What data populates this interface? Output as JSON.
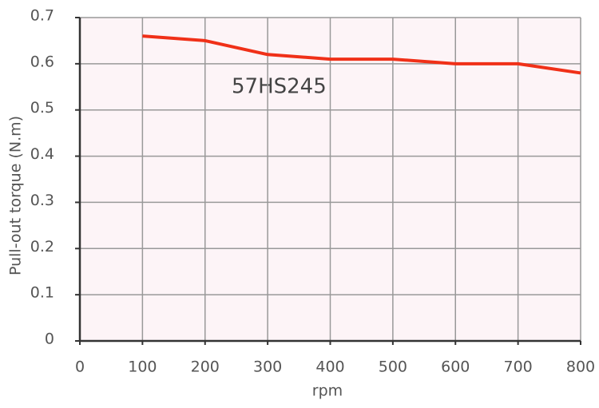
{
  "chart_data": {
    "type": "line",
    "annotation": "57HS245",
    "xlabel": "rpm",
    "ylabel": "Pull-out torque (N.m)",
    "x": [
      100,
      200,
      300,
      400,
      500,
      600,
      700,
      800
    ],
    "series": [
      {
        "name": "57HS245",
        "color": "#f03018",
        "values": [
          0.66,
          0.65,
          0.62,
          0.61,
          0.61,
          0.6,
          0.6,
          0.58
        ]
      }
    ],
    "xlim": [
      0,
      800
    ],
    "xticks": [
      0,
      100,
      200,
      300,
      400,
      500,
      600,
      700,
      800
    ],
    "ylim": [
      0,
      0.7
    ],
    "yticks": [
      0,
      0.1,
      0.2,
      0.3,
      0.4,
      0.5,
      0.6,
      0.7
    ],
    "grid": true
  }
}
